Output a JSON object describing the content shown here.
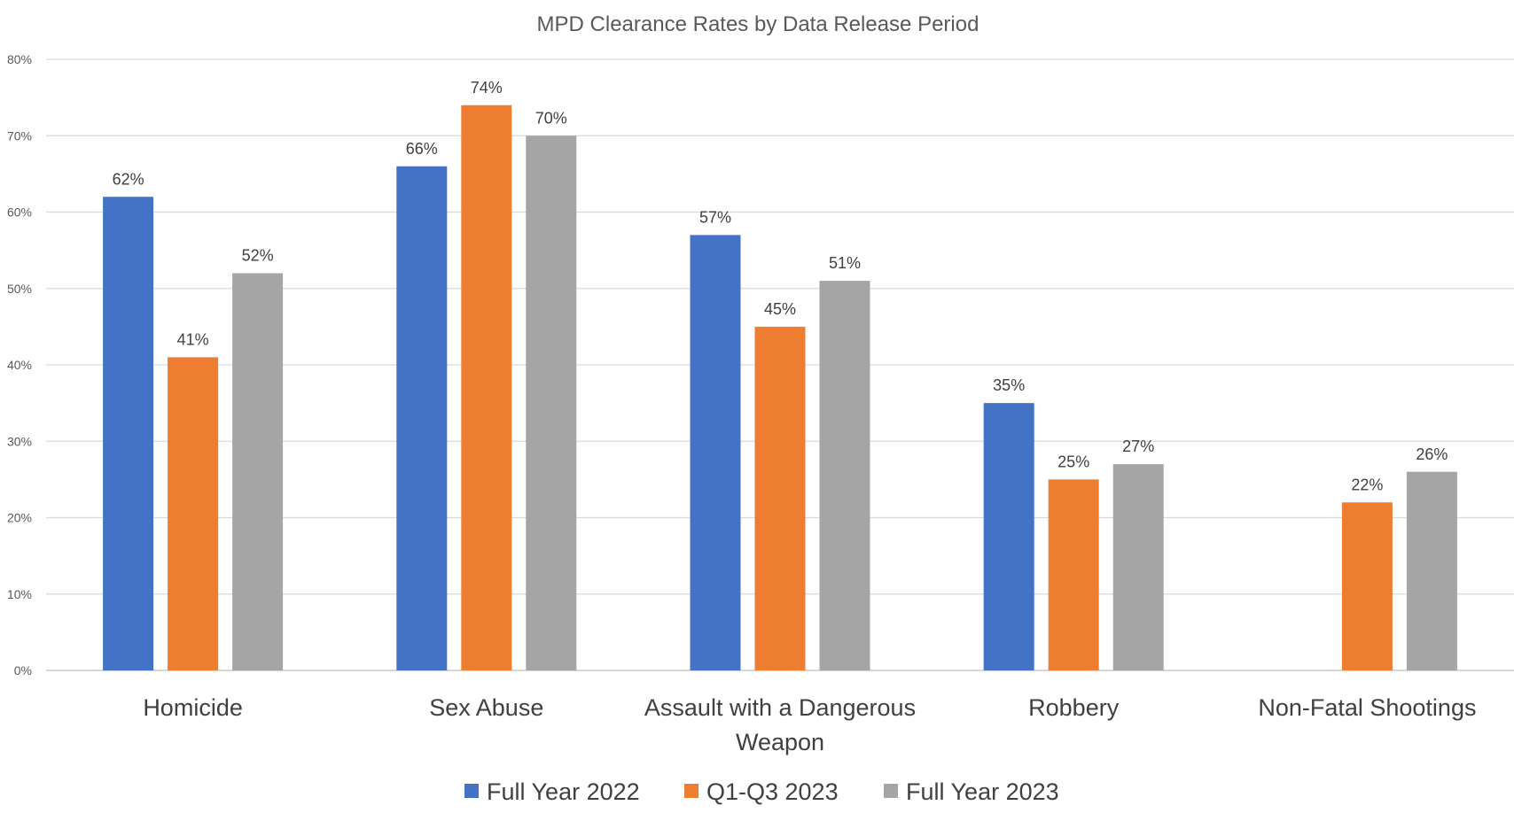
{
  "chart_data": {
    "type": "bar",
    "title": "MPD Clearance Rates by Data Release Period",
    "xlabel": "",
    "ylabel": "",
    "ylim": [
      0,
      80
    ],
    "y_ticks": [
      "0%",
      "10%",
      "20%",
      "30%",
      "40%",
      "50%",
      "60%",
      "70%",
      "80%"
    ],
    "y_tick_values": [
      0,
      10,
      20,
      30,
      40,
      50,
      60,
      70,
      80
    ],
    "grid": true,
    "legend_position": "bottom",
    "categories": [
      "Homicide",
      "Sex Abuse",
      "Assault with a Dangerous Weapon",
      "Robbery",
      "Non-Fatal Shootings"
    ],
    "category_lines": [
      [
        "Homicide"
      ],
      [
        "Sex Abuse"
      ],
      [
        "Assault with a Dangerous",
        "Weapon"
      ],
      [
        "Robbery"
      ],
      [
        "Non-Fatal Shootings"
      ]
    ],
    "series": [
      {
        "name": "Full Year 2022",
        "color": "#4472C4",
        "values": [
          62,
          66,
          57,
          35,
          null
        ],
        "labels": [
          "62%",
          "66%",
          "57%",
          "35%",
          null
        ]
      },
      {
        "name": "Q1-Q3 2023",
        "color": "#ED7D31",
        "values": [
          41,
          74,
          45,
          25,
          22
        ],
        "labels": [
          "41%",
          "74%",
          "45%",
          "25%",
          "22%"
        ]
      },
      {
        "name": "Full Year 2023",
        "color": "#A5A5A5",
        "values": [
          52,
          70,
          51,
          27,
          26
        ],
        "labels": [
          "52%",
          "70%",
          "51%",
          "27%",
          "26%"
        ]
      }
    ]
  }
}
